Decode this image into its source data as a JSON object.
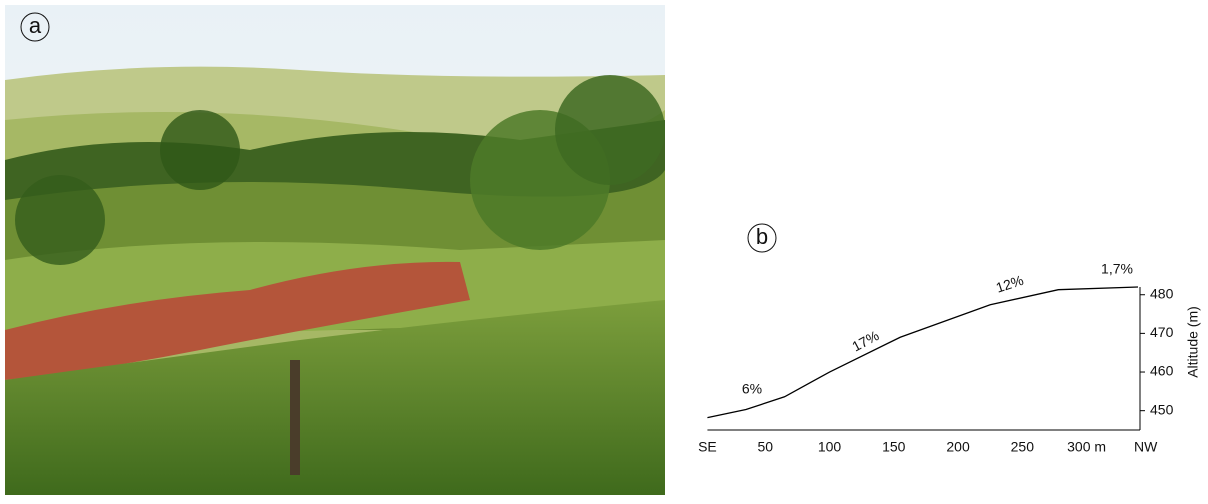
{
  "panels": [
    "a",
    "b"
  ],
  "chart_data": {
    "type": "line",
    "y_label": "Altitude (m)",
    "x": [
      5,
      35,
      65,
      100,
      155,
      225,
      278,
      340
    ],
    "values": [
      448.2,
      450.3,
      453.6,
      460,
      469,
      477.4,
      481.3,
      482
    ],
    "color": "#000000",
    "xlim": [
      0,
      340
    ],
    "ylim": [
      445,
      482
    ],
    "xticks": [
      {
        "value": 5,
        "label": "SE"
      },
      50,
      100,
      150,
      200,
      250,
      {
        "value": 300,
        "label": "300 m"
      },
      {
        "value": 346,
        "label": "NW"
      }
    ],
    "yticks": [
      450,
      460,
      470,
      480
    ],
    "annotations": [
      "6%",
      "17%",
      "12%",
      "1,7%"
    ]
  }
}
